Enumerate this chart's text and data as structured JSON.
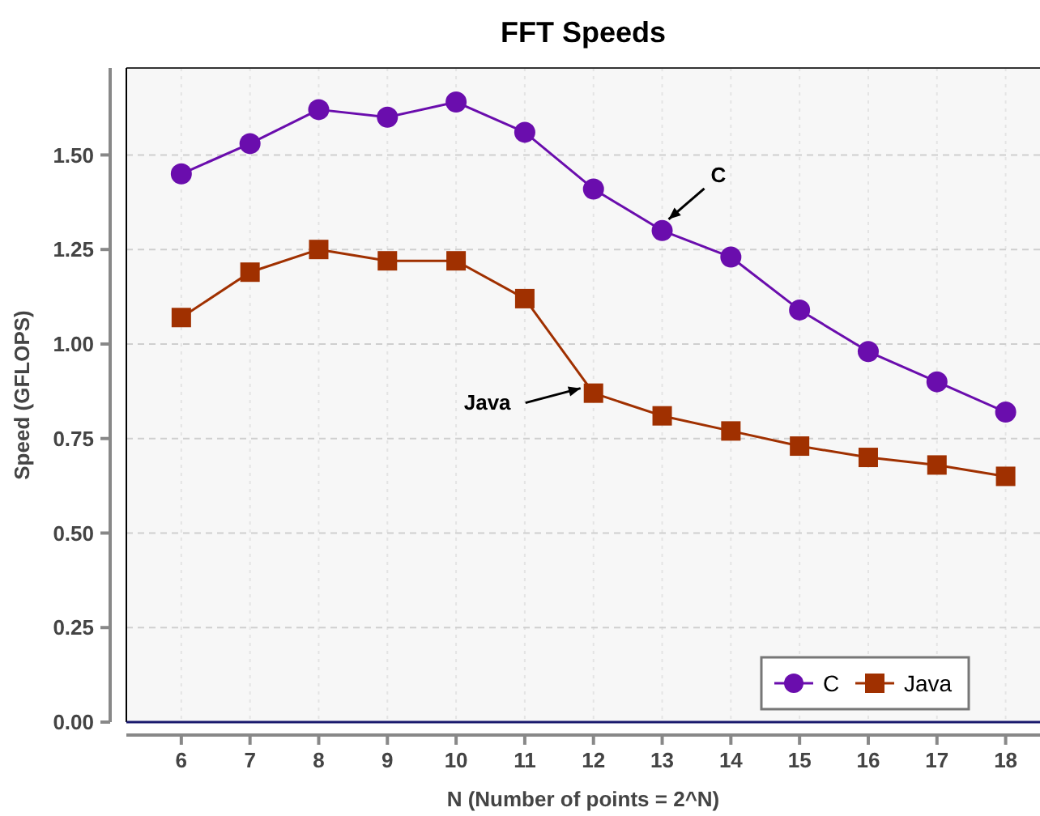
{
  "chart_data": {
    "type": "line",
    "title": "FFT Speeds",
    "xlabel": "N (Number of points = 2^N)",
    "ylabel": "Speed (GFLOPS)",
    "x": [
      6,
      7,
      8,
      9,
      10,
      11,
      12,
      13,
      14,
      15,
      16,
      17,
      18
    ],
    "xlim": [
      5.2,
      18.5
    ],
    "xticks": [
      6,
      7,
      8,
      9,
      10,
      11,
      12,
      13,
      14,
      15,
      16,
      17,
      18
    ],
    "ylim": [
      0,
      1.73
    ],
    "yticks": [
      {
        "value": 0,
        "label": "0.00"
      },
      {
        "value": 0.25,
        "label": "0.25"
      },
      {
        "value": 0.5,
        "label": "0.50"
      },
      {
        "value": 0.75,
        "label": "0.75"
      },
      {
        "value": 1,
        "label": "1.00"
      },
      {
        "value": 1.25,
        "label": "1.25"
      },
      {
        "value": 1.5,
        "label": "1.50"
      }
    ],
    "series": [
      {
        "name": "C",
        "color": "#6a0dad",
        "marker": "circle",
        "values": [
          1.45,
          1.53,
          1.62,
          1.6,
          1.64,
          1.56,
          1.41,
          1.3,
          1.23,
          1.09,
          0.98,
          0.9,
          0.82
        ]
      },
      {
        "name": "Java",
        "color": "#a03000",
        "marker": "square",
        "values": [
          1.07,
          1.19,
          1.25,
          1.22,
          1.22,
          1.12,
          0.87,
          0.81,
          0.77,
          0.73,
          0.7,
          0.68,
          0.65
        ]
      }
    ],
    "annotations": [
      {
        "text": "C",
        "x": 13,
        "y": 1.3
      },
      {
        "text": "Java",
        "x": 12,
        "y": 0.87
      }
    ],
    "grid": true,
    "legend": "bottom right",
    "line_style": "solid"
  }
}
